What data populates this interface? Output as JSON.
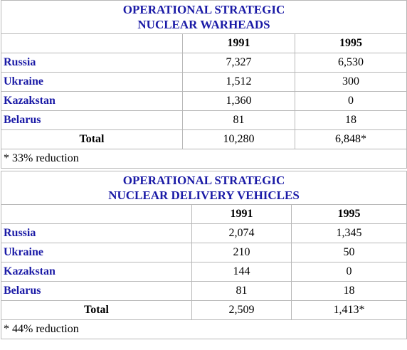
{
  "tables": [
    {
      "title": [
        "OPERATIONAL STRATEGIC",
        "NUCLEAR WARHEADS"
      ],
      "columns": [
        "1991",
        "1995"
      ],
      "rows": [
        [
          "Russia",
          "7,327",
          "6,530"
        ],
        [
          "Ukraine",
          "1,512",
          "300"
        ],
        [
          "Kazakstan",
          "1,360",
          "0"
        ],
        [
          "Belarus",
          "81",
          "18"
        ]
      ],
      "total": [
        "Total",
        "10,280",
        "6,848*"
      ],
      "note": "* 33% reduction"
    },
    {
      "title": [
        "OPERATIONAL STRATEGIC",
        "NUCLEAR DELIVERY VEHICLES"
      ],
      "columns": [
        "1991",
        "1995"
      ],
      "rows": [
        [
          "Russia",
          "2,074",
          "1,345"
        ],
        [
          "Ukraine",
          "210",
          "50"
        ],
        [
          "Kazakstan",
          "144",
          "0"
        ],
        [
          "Belarus",
          "81",
          "18"
        ]
      ],
      "total": [
        "Total",
        "2,509",
        "1,413*"
      ],
      "note": "* 44% reduction"
    }
  ]
}
